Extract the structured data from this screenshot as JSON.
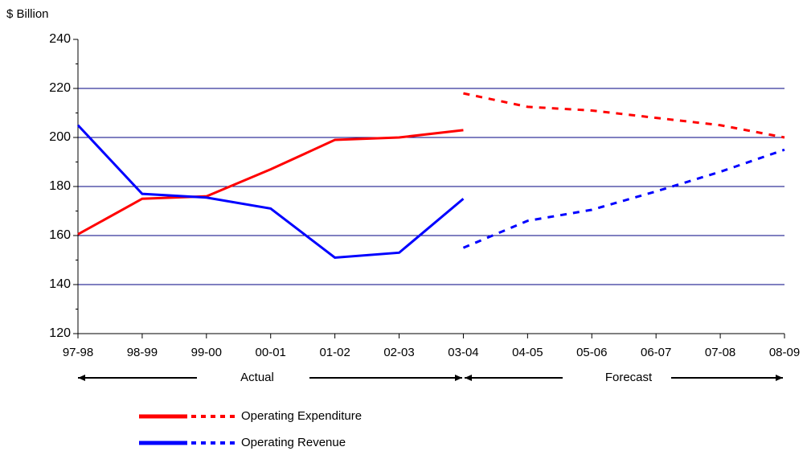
{
  "chart_data": {
    "type": "line",
    "y_label": "$ Billion",
    "categories": [
      "97-98",
      "98-99",
      "99-00",
      "00-01",
      "01-02",
      "02-03",
      "03-04",
      "04-05",
      "05-06",
      "06-07",
      "07-08",
      "08-09"
    ],
    "ylim": [
      120,
      240
    ],
    "yticks": [
      120,
      140,
      160,
      180,
      200,
      220,
      240
    ],
    "grid": true,
    "series": [
      {
        "name": "Operating Expenditure",
        "color": "#ff0000",
        "values": [
          160.5,
          175,
          176,
          187,
          199,
          200,
          203,
          null,
          null,
          null,
          null,
          null
        ],
        "forecast": [
          null,
          null,
          null,
          null,
          null,
          null,
          218,
          212.5,
          211,
          208,
          205,
          200
        ]
      },
      {
        "name": "Operating Revenue",
        "color": "#0000ff",
        "values": [
          205,
          177,
          175.5,
          171,
          151,
          153,
          175,
          null,
          null,
          null,
          null,
          null
        ],
        "forecast": [
          null,
          null,
          null,
          null,
          null,
          null,
          155,
          166,
          170.5,
          178,
          186,
          195
        ]
      }
    ],
    "annotations": [
      "Actual",
      "Forecast"
    ]
  }
}
